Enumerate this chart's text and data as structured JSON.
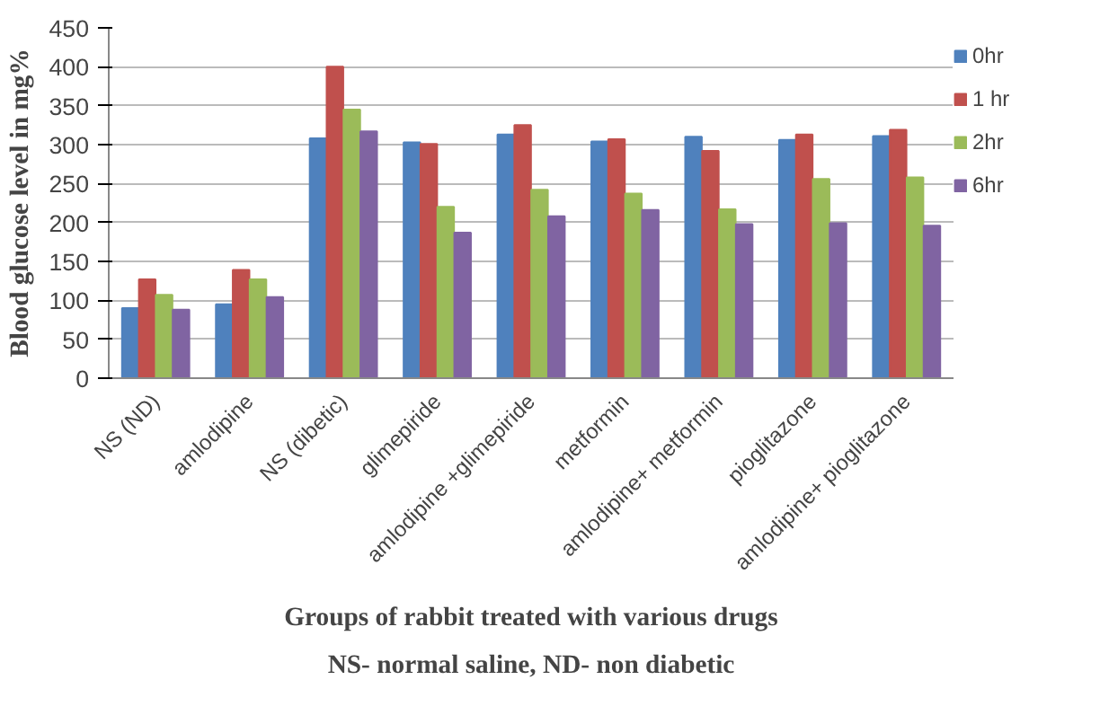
{
  "chart_data": {
    "type": "bar",
    "xlabel": "Groups of rabbit treated with various drugs",
    "ylabel": "Blood glucose level in mg%",
    "annotations": [
      "NS- normal saline, ND- non diabetic"
    ],
    "categories": [
      "NS (ND)",
      "amlodipine",
      "NS (dibetic)",
      "glimepiride",
      "amlodipine +glimepiride",
      "metformin",
      "amlodipine+ metformin",
      "pioglitazone",
      "amlodipine+ pioglitazone"
    ],
    "series": [
      {
        "name": "0hr",
        "color": "#4f81bd",
        "values": [
          90,
          95,
          308,
          303,
          313,
          304,
          310,
          306,
          311
        ]
      },
      {
        "name": "1 hr",
        "color": "#c0504d",
        "values": [
          127,
          139,
          400,
          301,
          325,
          307,
          292,
          313,
          319
        ]
      },
      {
        "name": "2hr",
        "color": "#9bbb59",
        "values": [
          107,
          127,
          345,
          220,
          242,
          237,
          217,
          256,
          258
        ]
      },
      {
        "name": "6hr",
        "color": "#8064a2",
        "values": [
          88,
          104,
          317,
          187,
          208,
          216,
          198,
          199,
          196
        ]
      }
    ],
    "ylim": [
      0,
      450
    ],
    "yticks": [
      0,
      50,
      100,
      150,
      200,
      250,
      300,
      350,
      400,
      450
    ],
    "grid": "y",
    "legend": "right"
  }
}
